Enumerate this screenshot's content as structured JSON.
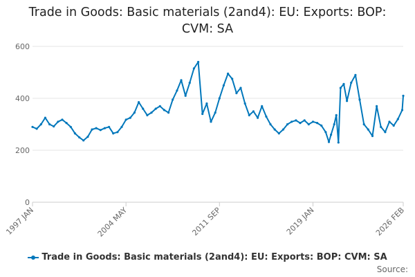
{
  "title": "Trade in Goods: Basic materials (2and4): EU: Exports: BOP: CVM: SA",
  "source_label": "Source:",
  "chart_data": {
    "type": "line",
    "title": "Trade in Goods: Basic materials (2and4): EU: Exports: BOP: CVM: SA",
    "xlabel": "",
    "ylabel": "",
    "ylim": [
      0,
      600
    ],
    "yticks": [
      0,
      200,
      400,
      600
    ],
    "xrange": [
      "1997 JAN",
      "2026 FEB"
    ],
    "xtick_labels": [
      "1997 JAN",
      "2004 MAY",
      "2011 SEP",
      "2019 JAN",
      "2026 FEB"
    ],
    "grid": "horizontal",
    "legend_position": "bottom",
    "series": [
      {
        "name": "Trade in Goods: Basic materials (2and4): EU: Exports: BOP: CVM: SA",
        "color": "#0077bb",
        "points": [
          [
            "1997 JAN",
            290
          ],
          [
            "1997 MAY",
            283
          ],
          [
            "1997 SEP",
            300
          ],
          [
            "1998 JAN",
            325
          ],
          [
            "1998 MAY",
            300
          ],
          [
            "1998 SEP",
            292
          ],
          [
            "1999 JAN",
            310
          ],
          [
            "1999 MAY",
            318
          ],
          [
            "1999 SEP",
            305
          ],
          [
            "2000 JAN",
            290
          ],
          [
            "2000 MAY",
            265
          ],
          [
            "2000 SEP",
            250
          ],
          [
            "2001 JAN",
            238
          ],
          [
            "2001 MAY",
            252
          ],
          [
            "2001 SEP",
            280
          ],
          [
            "2002 JAN",
            285
          ],
          [
            "2002 MAY",
            278
          ],
          [
            "2002 SEP",
            285
          ],
          [
            "2003 JAN",
            290
          ],
          [
            "2003 MAY",
            265
          ],
          [
            "2003 SEP",
            270
          ],
          [
            "2004 JAN",
            290
          ],
          [
            "2004 MAY",
            318
          ],
          [
            "2004 SEP",
            325
          ],
          [
            "2005 JAN",
            345
          ],
          [
            "2005 MAY",
            385
          ],
          [
            "2005 SEP",
            360
          ],
          [
            "2006 JAN",
            335
          ],
          [
            "2006 MAY",
            345
          ],
          [
            "2006 SEP",
            360
          ],
          [
            "2007 JAN",
            370
          ],
          [
            "2007 MAY",
            355
          ],
          [
            "2007 SEP",
            345
          ],
          [
            "2008 JAN",
            395
          ],
          [
            "2008 MAY",
            430
          ],
          [
            "2008 SEP",
            470
          ],
          [
            "2009 JAN",
            410
          ],
          [
            "2009 MAY",
            460
          ],
          [
            "2009 SEP",
            515
          ],
          [
            "2010 JAN",
            540
          ],
          [
            "2010 MAY",
            340
          ],
          [
            "2010 SEP",
            380
          ],
          [
            "2011 JAN",
            310
          ],
          [
            "2011 MAY",
            345
          ],
          [
            "2011 SEP",
            400
          ],
          [
            "2012 JAN",
            450
          ],
          [
            "2012 MAY",
            495
          ],
          [
            "2012 SEP",
            475
          ],
          [
            "2013 JAN",
            420
          ],
          [
            "2013 MAY",
            440
          ],
          [
            "2013 SEP",
            380
          ],
          [
            "2014 JAN",
            335
          ],
          [
            "2014 MAY",
            350
          ],
          [
            "2014 SEP",
            325
          ],
          [
            "2015 JAN",
            370
          ],
          [
            "2015 MAY",
            330
          ],
          [
            "2015 SEP",
            300
          ],
          [
            "2016 JAN",
            280
          ],
          [
            "2016 MAY",
            265
          ],
          [
            "2016 SEP",
            280
          ],
          [
            "2017 JAN",
            300
          ],
          [
            "2017 MAY",
            310
          ],
          [
            "2017 SEP",
            315
          ],
          [
            "2018 JAN",
            305
          ],
          [
            "2018 MAY",
            315
          ],
          [
            "2018 SEP",
            300
          ],
          [
            "2019 JAN",
            310
          ],
          [
            "2019 MAY",
            305
          ],
          [
            "2019 SEP",
            295
          ],
          [
            "2020 JAN",
            270
          ],
          [
            "2020 APR",
            232
          ],
          [
            "2020 JUN",
            260
          ],
          [
            "2020 SEP",
            300
          ],
          [
            "2020 NOV",
            335
          ],
          [
            "2021 JAN",
            230
          ],
          [
            "2021 MAR",
            440
          ],
          [
            "2021 JUN",
            455
          ],
          [
            "2021 SEP",
            390
          ],
          [
            "2022 JAN",
            460
          ],
          [
            "2022 MAY",
            490
          ],
          [
            "2022 SEP",
            395
          ],
          [
            "2023 JAN",
            300
          ],
          [
            "2023 MAY",
            280
          ],
          [
            "2023 SEP",
            255
          ],
          [
            "2024 JAN",
            370
          ],
          [
            "2024 MAY",
            290
          ],
          [
            "2024 SEP",
            270
          ],
          [
            "2025 JAN",
            310
          ],
          [
            "2025 MAY",
            295
          ],
          [
            "2025 SEP",
            320
          ],
          [
            "2026 JAN",
            355
          ],
          [
            "2026 FEB",
            410
          ]
        ]
      }
    ]
  }
}
